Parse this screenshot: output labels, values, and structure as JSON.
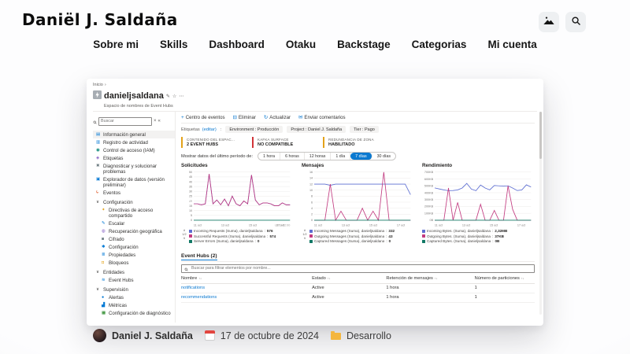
{
  "site": {
    "logo": "Daniël J. Saldaña",
    "nav": [
      "Sobre mi",
      "Skills",
      "Dashboard",
      "Otaku",
      "Backstage",
      "Categorias",
      "Mi cuenta"
    ]
  },
  "post": {
    "author": "Daniel J. Saldaña",
    "date": "17 de octubre de 2024",
    "category": "Desarrollo"
  },
  "azure": {
    "breadcrumb": "Inicio",
    "title": "danieljsaldana",
    "subtitle": "Espacio de nombres de Event Hubs",
    "search_placeholder": "Buscar",
    "toolbar": [
      {
        "icon": "+",
        "label": "Centro de eventos"
      },
      {
        "icon": "⊟",
        "label": "Eliminar"
      },
      {
        "icon": "↻",
        "label": "Actualizar"
      },
      {
        "icon": "✉",
        "label": "Enviar comentarios"
      }
    ],
    "tags_label": "Etiquetas",
    "tags_edit": "(editar)",
    "tags": [
      {
        "label": "Environment : Producción"
      },
      {
        "label": "Project : Daniel J. Saldaña"
      },
      {
        "label": "Tier : Pago"
      }
    ],
    "cards": [
      {
        "title": "CONTENIDO DEL ESPAC...",
        "value": "2 EVENT HUBS",
        "color": "#e3a21a"
      },
      {
        "title": "KAFKA SURFACE",
        "value": "NO COMPATIBLE",
        "color": "#d13438"
      },
      {
        "title": "REDUNDANCIA DE ZONA",
        "value": "HABILITADO",
        "color": "#e3a21a"
      }
    ],
    "period_label": "Mostrar datos del último período de:",
    "periods": [
      {
        "label": "1 hora"
      },
      {
        "label": "6 horas"
      },
      {
        "label": "12 horas"
      },
      {
        "label": "1 día"
      },
      {
        "label": "7 días",
        "selected": true
      },
      {
        "label": "30 días"
      }
    ],
    "sidebar": [
      {
        "icon": "▤",
        "color": "#0078d4",
        "label": "Información general",
        "selected": true
      },
      {
        "icon": "▥",
        "color": "#0078d4",
        "label": "Registro de actividad"
      },
      {
        "icon": "◉",
        "color": "#008272",
        "label": "Control de acceso (IAM)"
      },
      {
        "icon": "◈",
        "color": "#8661c5",
        "label": "Etiquetas"
      },
      {
        "icon": "✖",
        "color": "#69797e",
        "label": "Diagnosticar y solucionar problemas"
      },
      {
        "icon": "▣",
        "color": "#0078d4",
        "label": "Explorador de datos (versión preliminar)"
      },
      {
        "icon": "ϟ",
        "color": "#d83b01",
        "label": "Eventos"
      },
      {
        "icon": "∨",
        "color": "#323130",
        "label": "Configuración",
        "section": true
      },
      {
        "icon": "✦",
        "color": "#e3a21a",
        "label": "Directivas de acceso compartido",
        "indent": true
      },
      {
        "icon": "✎",
        "color": "#0078d4",
        "label": "Escalar",
        "indent": true
      },
      {
        "icon": "◍",
        "color": "#8661c5",
        "label": "Recuperación geográfica",
        "indent": true
      },
      {
        "icon": "◙",
        "color": "#69797e",
        "label": "Cifrado",
        "indent": true
      },
      {
        "icon": "✱",
        "color": "#0078d4",
        "label": "Configuración",
        "indent": true
      },
      {
        "icon": "≣",
        "color": "#0078d4",
        "label": "Propiedades",
        "indent": true
      },
      {
        "icon": "◘",
        "color": "#e3a21a",
        "label": "Bloqueos",
        "indent": true
      },
      {
        "icon": "∨",
        "color": "#323130",
        "label": "Entidades",
        "section": true
      },
      {
        "icon": "≋",
        "color": "#0078d4",
        "label": "Event Hubs",
        "indent": true
      },
      {
        "icon": "∨",
        "color": "#323130",
        "label": "Supervisión",
        "section": true
      },
      {
        "icon": "●",
        "color": "#0078d4",
        "label": "Alertas",
        "indent": true
      },
      {
        "icon": "▟",
        "color": "#0078d4",
        "label": "Métricas",
        "indent": true
      },
      {
        "icon": "▦",
        "color": "#107c10",
        "label": "Configuración de diagnóstico",
        "indent": true
      }
    ],
    "hub_section": {
      "tab": "Event Hubs (2)",
      "search_placeholder": "Buscar para filtrar elementos por nombre...",
      "columns": [
        {
          "label": "Nombre"
        },
        {
          "label": "Estado"
        },
        {
          "label": "Retención de mensajes"
        },
        {
          "label": "Número de particiones"
        }
      ],
      "rows": [
        {
          "name": "notifications",
          "estado": "Active",
          "retencion": "1 hora",
          "particiones": "1"
        },
        {
          "name": "recommendations",
          "estado": "Active",
          "retencion": "1 hora",
          "particiones": "1"
        }
      ]
    },
    "glyphs": {
      "breadcrumb_sep": "›",
      "pencil": "✎",
      "star": "☆",
      "more": "⋯",
      "close": "×",
      "collapse": "«",
      "sort": "↑↓",
      "pager_up": "∧",
      "pager_down": "∨",
      "colon": ":"
    },
    "accent_color": "#0078d4"
  },
  "chart_data": [
    {
      "type": "line",
      "title": "Solicitudes",
      "x_ticks": [
        "11 oct",
        "13 oct",
        "15 oct",
        "17 oct"
      ],
      "timezone": "UTC+02:00",
      "y_ticks": [
        "50",
        "45",
        "40",
        "35",
        "30",
        "25",
        "20",
        "15",
        "10",
        "5",
        "0"
      ],
      "ylim": [
        0,
        50
      ],
      "legend_page": "1/2",
      "series": [
        {
          "name": "Incoming Requests (Suma), danieljsaldana",
          "value": "576",
          "color": "#5e6fd2",
          "values": [
            17,
            17,
            16,
            17,
            48,
            17,
            21,
            16,
            22,
            15,
            25,
            17,
            15,
            20,
            17,
            47,
            21,
            16,
            18,
            18,
            17,
            15,
            15,
            18,
            16,
            16
          ]
        },
        {
          "name": "Successful Requests (Suma), danieljsaldana",
          "value": "574",
          "color": "#c23b80",
          "values": [
            17,
            17,
            16,
            17,
            48,
            17,
            21,
            16,
            22,
            15,
            25,
            17,
            15,
            20,
            17,
            47,
            21,
            16,
            18,
            18,
            17,
            15,
            15,
            18,
            16,
            16
          ]
        },
        {
          "name": "Server Errors (Suma), danieljsaldana",
          "value": "0",
          "color": "#117865",
          "values": [
            0,
            0,
            0,
            0,
            0,
            0,
            0,
            0,
            0,
            0,
            0,
            0,
            0,
            0,
            0,
            0,
            0,
            0,
            0,
            0,
            0,
            0,
            0,
            0,
            0,
            0
          ]
        }
      ]
    },
    {
      "type": "line",
      "title": "Mensajes",
      "x_ticks": [
        "11 oct",
        "13 oct",
        "15 oct",
        "17 oct"
      ],
      "y_ticks": [
        "16",
        "14",
        "12",
        "10",
        "8",
        "6",
        "4",
        "2",
        "0"
      ],
      "ylim": [
        0,
        16
      ],
      "legend_page": "1/2",
      "series": [
        {
          "name": "Incoming Messages (Suma), danieljsaldana",
          "value": "332",
          "color": "#5e6fd2",
          "values": [
            12,
            12,
            12,
            11.6,
            12,
            12,
            12,
            12,
            12,
            12,
            12,
            12,
            12,
            12,
            12,
            12,
            12,
            12,
            8.5
          ]
        },
        {
          "name": "Outgoing Messages (Suma), danieljsaldana",
          "value": "43",
          "color": "#c23b80",
          "values": [
            0,
            0,
            0,
            12,
            0,
            3,
            0,
            0,
            0,
            4,
            0,
            3,
            0,
            16,
            0,
            0,
            0,
            0,
            0
          ]
        },
        {
          "name": "Captured Messages (Suma), danieljsaldana",
          "value": "0",
          "color": "#117865",
          "values": [
            0,
            0,
            0,
            0,
            0,
            0,
            0,
            0,
            0,
            0,
            0,
            0,
            0,
            0,
            0,
            0,
            0,
            0,
            0
          ]
        }
      ]
    },
    {
      "type": "line",
      "title": "Rendimiento",
      "x_ticks": [
        "11 oct",
        "13 oct",
        "15 oct",
        "17 oct"
      ],
      "y_ticks": [
        "700KB",
        "600KB",
        "500KB",
        "400KB",
        "300KB",
        "200KB",
        "100KB",
        "0B"
      ],
      "ylim": [
        0,
        700
      ],
      "series": [
        {
          "name": "Incoming Bytes. (Suma), danieljsaldana",
          "value": "2,32MB",
          "color": "#5e6fd2",
          "values": [
            470,
            455,
            440,
            430,
            432,
            440,
            468,
            535,
            452,
            430,
            512,
            468,
            442,
            505,
            500,
            494,
            500,
            468,
            432,
            440,
            515,
            482
          ]
        },
        {
          "name": "Outgoing Bytes. (Suma), danieljsaldana",
          "value": "37KB",
          "color": "#c23b80",
          "values": [
            0,
            0,
            0,
            470,
            0,
            258,
            0,
            0,
            0,
            0,
            232,
            0,
            0,
            142,
            0,
            0,
            500,
            158,
            0,
            0,
            0,
            0
          ]
        },
        {
          "name": "Captured Bytes. (Suma), danieljsaldana",
          "value": "0B",
          "color": "#117865",
          "values": [
            0,
            0,
            0,
            0,
            0,
            0,
            0,
            0,
            0,
            0,
            0,
            0,
            0,
            0,
            0,
            0,
            0,
            0,
            0,
            0,
            0,
            0
          ]
        }
      ]
    }
  ]
}
